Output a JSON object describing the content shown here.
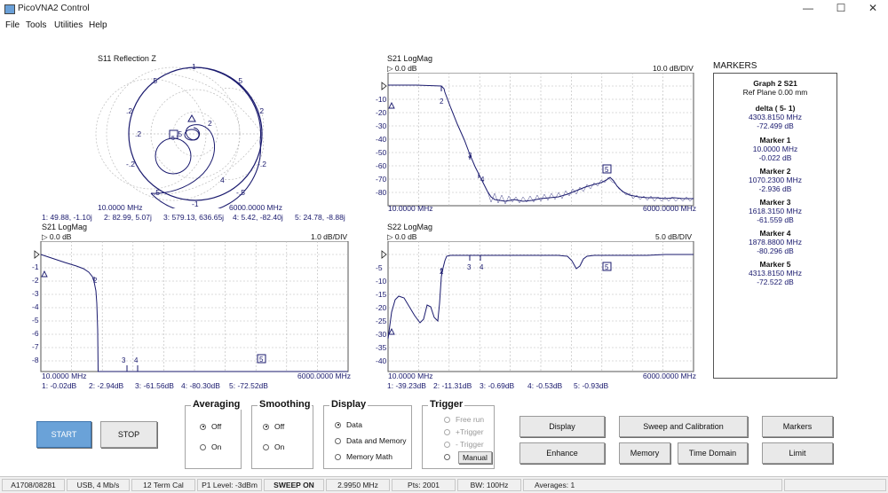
{
  "window": {
    "title": "PicoVNA2 Control",
    "minimize": "—",
    "maximize": "☐",
    "close": "✕"
  },
  "menu": [
    "File",
    "Tools",
    "Utilities",
    "Help"
  ],
  "smith": {
    "title": "S11 Reflection Z",
    "start": "10.0000 MHz",
    "stop": "6000.0000 MHz",
    "markers_line": [
      "1: 49.88, -1.10j",
      "2: 82.99, 5.07j",
      "3: 579.13, 636.65j",
      "4: 5.42, -82.40j",
      "5: 24.78, -8.88j"
    ]
  },
  "plots": {
    "tr": {
      "title": "S21 LogMag",
      "ref": "▷ 0.0 dB",
      "div": "10.0 dB/DIV",
      "start": "10.0000 MHz",
      "stop": "6000.0000 MHz",
      "yticks": [
        "-10",
        "-20",
        "-30",
        "-40",
        "-50",
        "-60",
        "-70",
        "-80"
      ]
    },
    "bl": {
      "title": "S21 LogMag",
      "ref": "▷ 0.0 dB",
      "div": "1.0 dB/DIV",
      "start": "10.0000 MHz",
      "stop": "6000.0000 MHz",
      "yticks": [
        "-1",
        "-2",
        "-3",
        "-4",
        "-5",
        "-6",
        "-7",
        "-8"
      ],
      "markers_line": [
        "1: -0.02dB",
        "2: -2.94dB",
        "3: -61.56dB",
        "4: -80.30dB",
        "5: -72.52dB"
      ]
    },
    "br": {
      "title": "S22 LogMag",
      "ref": "▷ 0.0 dB",
      "div": "5.0 dB/DIV",
      "start": "10.0000 MHz",
      "stop": "6000.0000 MHz",
      "yticks": [
        "-5",
        "-10",
        "-15",
        "-20",
        "-25",
        "-30",
        "-35",
        "-40"
      ],
      "markers_line": [
        "1: -39.23dB",
        "2: -11.31dB",
        "3: -0.69dB",
        "4: -0.53dB",
        "5: -0.93dB"
      ]
    }
  },
  "markers_panel": {
    "heading": "MARKERS",
    "graph": "Graph 2 S21",
    "ref_plane": "Ref Plane 0.00 mm",
    "delta_label": "delta ( 5- 1)",
    "delta_freq": "4303.8150 MHz",
    "delta_val": "-72.499 dB",
    "items": [
      {
        "label": "Marker  1",
        "freq": "10.0000 MHz",
        "val": "-0.022 dB"
      },
      {
        "label": "Marker  2",
        "freq": "1070.2300 MHz",
        "val": "-2.936 dB"
      },
      {
        "label": "Marker  3",
        "freq": "1618.3150 MHz",
        "val": "-61.559 dB"
      },
      {
        "label": "Marker  4",
        "freq": "1878.8800 MHz",
        "val": "-80.296 dB"
      },
      {
        "label": "Marker  5",
        "freq": "4313.8150 MHz",
        "val": "-72.522 dB"
      }
    ]
  },
  "controls": {
    "start": "START",
    "stop": "STOP",
    "averaging": {
      "title": "Averaging",
      "off": "Off",
      "on": "On"
    },
    "smoothing": {
      "title": "Smoothing",
      "off": "Off",
      "on": "On"
    },
    "display": {
      "title": "Display",
      "data": "Data",
      "data_mem": "Data and Memory",
      "mem_math": "Memory Math"
    },
    "trigger": {
      "title": "Trigger",
      "free": "Free run",
      "plus": "+Trigger",
      "minus": "- Trigger",
      "manual": "Manual"
    },
    "buttons": {
      "display": "Display",
      "sweep": "Sweep and Calibration",
      "markers": "Markers",
      "enhance": "Enhance",
      "memory": "Memory",
      "time_domain": "Time Domain",
      "limit": "Limit"
    }
  },
  "status": [
    "A1708/08281",
    "USB, 4 Mb/s",
    "12 Term Cal",
    "P1 Level: -3dBm",
    "SWEEP ON",
    "2.9950 MHz",
    "Pts: 2001",
    "BW: 100Hz",
    "Averages: 1"
  ],
  "colors": {
    "trace": "#1a1a6e",
    "grid": "#b8b8b8",
    "start_btn": "#6aa2d8"
  }
}
